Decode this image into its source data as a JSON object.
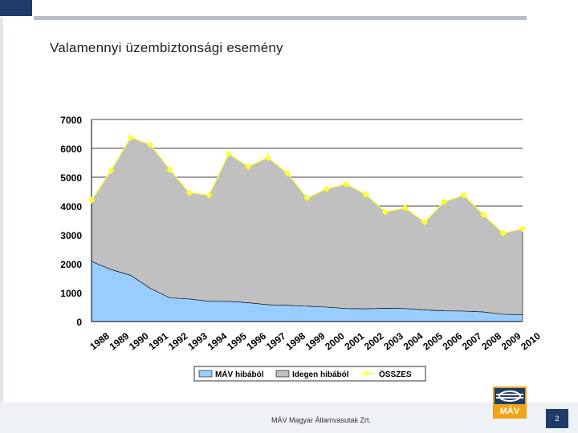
{
  "slide": {
    "title": "Valamennyi üzembiztonsági esemény",
    "footer": "MÁV Magyar Államvasutak Zrt.",
    "page_number": "2",
    "logo_text": "MÁV"
  },
  "chart_data": {
    "type": "area",
    "title": "",
    "xlabel": "",
    "ylabel": "",
    "ylim": [
      0,
      7000
    ],
    "yticks": [
      "0",
      "1000",
      "2000",
      "3000",
      "4000",
      "5000",
      "6000",
      "7000"
    ],
    "grid": true,
    "legend_position": "bottom",
    "categories": [
      "1988",
      "1989",
      "1990",
      "1991",
      "1992",
      "1993",
      "1994",
      "1995",
      "1996",
      "1997",
      "1998",
      "1999",
      "2000",
      "2001",
      "2002",
      "2003",
      "2004",
      "2005",
      "2006",
      "2007",
      "2008",
      "2009",
      "2010"
    ],
    "series": [
      {
        "name": "MÁV hibából",
        "kind": "area",
        "color": "#99ccff",
        "values": [
          2080,
          1800,
          1600,
          1150,
          820,
          780,
          700,
          700,
          650,
          580,
          560,
          530,
          500,
          450,
          440,
          460,
          450,
          400,
          370,
          360,
          330,
          250,
          240
        ]
      },
      {
        "name": "Idegen hibából",
        "kind": "area",
        "color": "#c0c0c0",
        "values": [
          2120,
          3430,
          4780,
          4980,
          4440,
          3680,
          3680,
          5110,
          4720,
          5100,
          4580,
          3750,
          4100,
          4310,
          3960,
          3340,
          3490,
          3050,
          3780,
          4020,
          3370,
          2810,
          2970
        ]
      },
      {
        "name": "ÖSSZES",
        "kind": "line",
        "color": "#ffff33",
        "values": [
          4200,
          5230,
          6380,
          6130,
          5260,
          4460,
          4380,
          5810,
          5370,
          5680,
          5140,
          4280,
          4600,
          4760,
          4400,
          3800,
          3940,
          3450,
          4150,
          4380,
          3700,
          3060,
          3210
        ]
      }
    ]
  }
}
